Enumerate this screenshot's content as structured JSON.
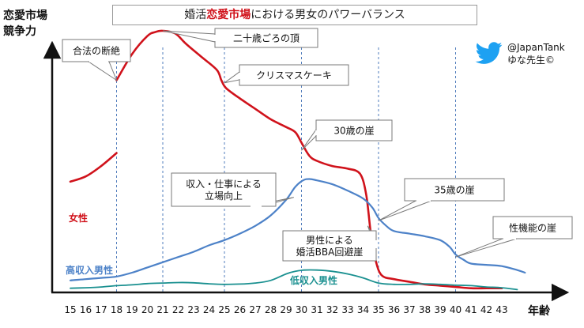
{
  "header": {
    "title_pre": "婚活",
    "title_highlight": "恋愛市場",
    "title_post": "における男女のパワーバランス"
  },
  "credit": {
    "handle": "@JapanTank",
    "author": "ゆな先生©",
    "icon": "twitter-bird-icon",
    "icon_color": "#1da1f2"
  },
  "chart_data": {
    "type": "line",
    "title": "婚活恋愛市場における男女のパワーバランス",
    "ylabel_line1": "恋愛市場",
    "ylabel_line2": "競争力",
    "xlabel": "年齢",
    "x_ticks": [
      15,
      16,
      17,
      18,
      19,
      20,
      21,
      22,
      23,
      24,
      25,
      26,
      27,
      28,
      29,
      30,
      31,
      32,
      33,
      34,
      35,
      36,
      37,
      38,
      39,
      40,
      41,
      42,
      43
    ],
    "xlim": [
      15,
      45
    ],
    "ylim": [
      0,
      100
    ],
    "grid": false,
    "reference_lines": [
      18,
      21,
      25,
      30,
      35,
      40
    ],
    "series": [
      {
        "name": "女性",
        "color": "#d0121b",
        "segments": [
          [
            [
              15,
              42
            ],
            [
              16,
              44
            ],
            [
              17,
              48
            ],
            [
              18,
              53
            ]
          ],
          [
            [
              18,
              81
            ],
            [
              19,
              91
            ],
            [
              20,
              98
            ],
            [
              20.5,
              99.5
            ],
            [
              21,
              100
            ],
            [
              21.8,
              99
            ],
            [
              22.5,
              95
            ],
            [
              23.5,
              90
            ],
            [
              24.5,
              85
            ],
            [
              24.8,
              81
            ],
            [
              25.1,
              78
            ],
            [
              26,
              74
            ],
            [
              27,
              70
            ],
            [
              28,
              66
            ],
            [
              29,
              63
            ],
            [
              29.6,
              61
            ],
            [
              30,
              57
            ],
            [
              30.5,
              52
            ],
            [
              31,
              50
            ],
            [
              32,
              48
            ],
            [
              33,
              47
            ],
            [
              33.8,
              45
            ],
            [
              34.2,
              37
            ],
            [
              34.5,
              22
            ],
            [
              34.8,
              12
            ],
            [
              35.2,
              6
            ],
            [
              36,
              4.5
            ],
            [
              37,
              3.5
            ],
            [
              38,
              2.5
            ],
            [
              39,
              2
            ],
            [
              40,
              1.5
            ],
            [
              41,
              1
            ],
            [
              42,
              1
            ],
            [
              43,
              1
            ]
          ]
        ]
      },
      {
        "name": "高収入男性",
        "color": "#4d82c8",
        "values": [
          [
            15,
            4
          ],
          [
            16,
            4.5
          ],
          [
            17,
            5
          ],
          [
            18,
            5.5
          ],
          [
            19,
            7
          ],
          [
            20,
            9
          ],
          [
            21,
            11
          ],
          [
            22,
            13
          ],
          [
            23,
            15
          ],
          [
            24,
            17.5
          ],
          [
            25,
            19.5
          ],
          [
            26,
            22
          ],
          [
            27,
            25
          ],
          [
            28,
            29
          ],
          [
            29,
            35
          ],
          [
            29.6,
            40
          ],
          [
            30.1,
            42.5
          ],
          [
            30.5,
            43
          ],
          [
            31,
            42.5
          ],
          [
            32,
            41
          ],
          [
            33,
            38.5
          ],
          [
            34,
            35.5
          ],
          [
            34.6,
            32
          ],
          [
            35,
            28
          ],
          [
            35.5,
            25
          ],
          [
            36,
            23
          ],
          [
            37,
            22
          ],
          [
            38,
            21
          ],
          [
            39,
            19.5
          ],
          [
            39.6,
            17
          ],
          [
            40,
            14
          ],
          [
            40.5,
            12
          ],
          [
            41,
            10.5
          ],
          [
            42,
            10
          ],
          [
            43,
            9.5
          ],
          [
            44,
            8
          ],
          [
            44.5,
            7
          ]
        ]
      },
      {
        "name": "低収入男性",
        "color": "#1a9090",
        "values": [
          [
            15,
            1
          ],
          [
            16,
            1.2
          ],
          [
            17,
            1.5
          ],
          [
            18,
            2
          ],
          [
            19,
            2.3
          ],
          [
            20,
            2.8
          ],
          [
            21,
            3
          ],
          [
            22,
            3.2
          ],
          [
            23,
            3.1
          ],
          [
            24,
            2.7
          ],
          [
            25,
            2.5
          ],
          [
            26,
            2.6
          ],
          [
            27,
            3
          ],
          [
            28,
            4
          ],
          [
            29,
            6.5
          ],
          [
            29.6,
            7.5
          ],
          [
            30.2,
            8
          ],
          [
            31,
            8
          ],
          [
            32,
            7.5
          ],
          [
            33,
            6.5
          ],
          [
            34,
            5
          ],
          [
            35,
            3
          ],
          [
            36,
            2.5
          ],
          [
            37,
            2.5
          ],
          [
            38,
            2.7
          ],
          [
            39,
            2.5
          ],
          [
            40,
            2.2
          ],
          [
            41,
            2
          ],
          [
            42,
            1.5
          ],
          [
            43,
            1.2
          ],
          [
            44,
            0.5
          ]
        ]
      }
    ],
    "annotations": [
      {
        "lines": [
          "合法の断絶"
        ],
        "x": 18,
        "y": 81
      },
      {
        "lines": [
          "二十歳ごろの頂"
        ],
        "x": 21,
        "y": 100
      },
      {
        "lines": [
          "クリスマスケーキ"
        ],
        "x": 25,
        "y": 80
      },
      {
        "lines": [
          "30歳の崖"
        ],
        "x": 30,
        "y": 54
      },
      {
        "lines": [
          "収入・仕事による",
          "立場向上"
        ],
        "x": 29.5,
        "y": 36
      },
      {
        "lines": [
          "35歳の崖"
        ],
        "x": 35,
        "y": 27
      },
      {
        "lines": [
          "男性による",
          "婚活BBA回避崖"
        ],
        "x": 34.3,
        "y": 25
      },
      {
        "lines": [
          "性機能の崖"
        ],
        "x": 40,
        "y": 13
      }
    ]
  }
}
